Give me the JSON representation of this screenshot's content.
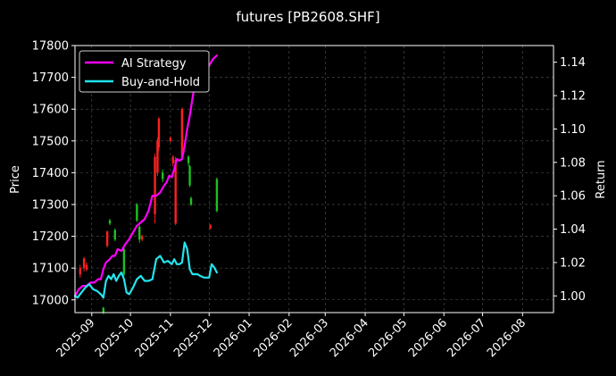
{
  "chart_data": {
    "type": "line",
    "title": "futures [PB2608.SHF]",
    "ylabel_left": "Price",
    "ylabel_right": "Return",
    "xlabel": "",
    "grid": true,
    "legend_position": "top-left",
    "x_ticks": [
      "2025-09",
      "2025-10",
      "2025-11",
      "2025-12",
      "2026-01",
      "2026-02",
      "2026-03",
      "2026-04",
      "2026-05",
      "2026-06",
      "2026-07",
      "2026-08"
    ],
    "xlim": [
      "2025-08-19",
      "2026-08-25"
    ],
    "ylim_left": [
      16960,
      17800
    ],
    "y_ticks_left": [
      17000,
      17100,
      17200,
      17300,
      17400,
      17500,
      17600,
      17700,
      17800
    ],
    "ylim_right": [
      0.99,
      1.15
    ],
    "y_ticks_right": [
      "1.00",
      "1.02",
      "1.04",
      "1.06",
      "1.08",
      "1.10",
      "1.12",
      "1.14"
    ],
    "colors": {
      "up": "#ff2020",
      "down": "#1fbf1f",
      "strategy": "#ff00ff",
      "buyhold": "#22e5ee",
      "grid": "#555555"
    },
    "candles": [
      {
        "x": "2025-08-23",
        "open": 17080,
        "close": 17100,
        "high": 17110,
        "low": 17070
      },
      {
        "x": "2025-08-26",
        "open": 17100,
        "close": 17130,
        "high": 17135,
        "low": 17090
      },
      {
        "x": "2025-08-28",
        "open": 17095,
        "close": 17110,
        "high": 17118,
        "low": 17090
      },
      {
        "x": "2025-09-10",
        "open": 16975,
        "close": 16960,
        "high": 16978,
        "low": 16955
      },
      {
        "x": "2025-09-13",
        "open": 17170,
        "close": 17215,
        "high": 17218,
        "low": 17165
      },
      {
        "x": "2025-09-15",
        "open": 17250,
        "close": 17240,
        "high": 17255,
        "low": 17235
      },
      {
        "x": "2025-09-19",
        "open": 17220,
        "close": 17190,
        "high": 17225,
        "low": 17185
      },
      {
        "x": "2025-09-26",
        "open": 17160,
        "close": 17080,
        "high": 17170,
        "low": 17075
      },
      {
        "x": "2025-10-06",
        "open": 17300,
        "close": 17250,
        "high": 17305,
        "low": 17245
      },
      {
        "x": "2025-10-08",
        "open": 17230,
        "close": 17190,
        "high": 17235,
        "low": 17180
      },
      {
        "x": "2025-10-10",
        "open": 17190,
        "close": 17200,
        "high": 17205,
        "low": 17185
      },
      {
        "x": "2025-10-20",
        "open": 17270,
        "close": 17450,
        "high": 17460,
        "low": 17240
      },
      {
        "x": "2025-10-22",
        "open": 17400,
        "close": 17500,
        "high": 17510,
        "low": 17390
      },
      {
        "x": "2025-10-23",
        "open": 17480,
        "close": 17570,
        "high": 17575,
        "low": 17470
      },
      {
        "x": "2025-10-26",
        "open": 17400,
        "close": 17380,
        "high": 17410,
        "low": 17370
      },
      {
        "x": "2025-11-01",
        "open": 17500,
        "close": 17510,
        "high": 17515,
        "low": 17495
      },
      {
        "x": "2025-11-03",
        "open": 17430,
        "close": 17450,
        "high": 17455,
        "low": 17420
      },
      {
        "x": "2025-11-05",
        "open": 17240,
        "close": 17440,
        "high": 17450,
        "low": 17235
      },
      {
        "x": "2025-11-10",
        "open": 17450,
        "close": 17600,
        "high": 17605,
        "low": 17440
      },
      {
        "x": "2025-11-15",
        "open": 17450,
        "close": 17430,
        "high": 17455,
        "low": 17420
      },
      {
        "x": "2025-11-16",
        "open": 17420,
        "close": 17360,
        "high": 17425,
        "low": 17355
      },
      {
        "x": "2025-11-17",
        "open": 17320,
        "close": 17300,
        "high": 17325,
        "low": 17295
      },
      {
        "x": "2025-12-02",
        "open": 17225,
        "close": 17235,
        "high": 17238,
        "low": 17222
      },
      {
        "x": "2025-12-07",
        "open": 17380,
        "close": 17280,
        "high": 17385,
        "low": 17275
      }
    ],
    "series": [
      {
        "name": "AI Strategy",
        "axis": "right",
        "points": [
          [
            "2025-08-19",
            1.0
          ],
          [
            "2025-08-22",
            1.004
          ],
          [
            "2025-08-25",
            1.006
          ],
          [
            "2025-08-28",
            1.006
          ],
          [
            "2025-08-31",
            1.008
          ],
          [
            "2025-09-03",
            1.008
          ],
          [
            "2025-09-06",
            1.01
          ],
          [
            "2025-09-08",
            1.01
          ],
          [
            "2025-09-10",
            1.016
          ],
          [
            "2025-09-12",
            1.02
          ],
          [
            "2025-09-15",
            1.022
          ],
          [
            "2025-09-17",
            1.024
          ],
          [
            "2025-09-19",
            1.024
          ],
          [
            "2025-09-21",
            1.028
          ],
          [
            "2025-09-24",
            1.027
          ],
          [
            "2025-09-27",
            1.031
          ],
          [
            "2025-09-30",
            1.034
          ],
          [
            "2025-10-03",
            1.038
          ],
          [
            "2025-10-06",
            1.042
          ],
          [
            "2025-10-09",
            1.044
          ],
          [
            "2025-10-12",
            1.046
          ],
          [
            "2025-10-15",
            1.051
          ],
          [
            "2025-10-18",
            1.06
          ],
          [
            "2025-10-21",
            1.06
          ],
          [
            "2025-10-24",
            1.062
          ],
          [
            "2025-10-27",
            1.066
          ],
          [
            "2025-10-29",
            1.068
          ],
          [
            "2025-10-31",
            1.072
          ],
          [
            "2025-11-02",
            1.071
          ],
          [
            "2025-11-04",
            1.076
          ],
          [
            "2025-11-06",
            1.082
          ],
          [
            "2025-11-08",
            1.081
          ],
          [
            "2025-11-10",
            1.082
          ],
          [
            "2025-11-12",
            1.09
          ],
          [
            "2025-11-14",
            1.1
          ],
          [
            "2025-11-16",
            1.108
          ],
          [
            "2025-11-18",
            1.118
          ],
          [
            "2025-11-20",
            1.128
          ],
          [
            "2025-11-23",
            1.128
          ],
          [
            "2025-11-26",
            1.128
          ],
          [
            "2025-11-28",
            1.134
          ],
          [
            "2025-12-01",
            1.138
          ],
          [
            "2025-12-04",
            1.142
          ],
          [
            "2025-12-07",
            1.144
          ]
        ]
      },
      {
        "name": "Buy-and-Hold",
        "axis": "right",
        "points": [
          [
            "2025-08-19",
            1.0
          ],
          [
            "2025-08-21",
            0.999
          ],
          [
            "2025-08-24",
            1.002
          ],
          [
            "2025-08-27",
            1.005
          ],
          [
            "2025-08-30",
            1.007
          ],
          [
            "2025-09-02",
            1.004
          ],
          [
            "2025-09-05",
            1.003
          ],
          [
            "2025-09-08",
            1.001
          ],
          [
            "2025-09-10",
            0.999
          ],
          [
            "2025-09-12",
            1.009
          ],
          [
            "2025-09-14",
            1.012
          ],
          [
            "2025-09-16",
            1.01
          ],
          [
            "2025-09-18",
            1.013
          ],
          [
            "2025-09-20",
            1.009
          ],
          [
            "2025-09-22",
            1.012
          ],
          [
            "2025-09-24",
            1.014
          ],
          [
            "2025-09-26",
            1.01
          ],
          [
            "2025-09-28",
            1.002
          ],
          [
            "2025-09-30",
            1.001
          ],
          [
            "2025-10-03",
            1.005
          ],
          [
            "2025-10-06",
            1.01
          ],
          [
            "2025-10-09",
            1.012
          ],
          [
            "2025-10-12",
            1.009
          ],
          [
            "2025-10-15",
            1.009
          ],
          [
            "2025-10-18",
            1.01
          ],
          [
            "2025-10-21",
            1.022
          ],
          [
            "2025-10-24",
            1.024
          ],
          [
            "2025-10-27",
            1.02
          ],
          [
            "2025-10-30",
            1.021
          ],
          [
            "2025-11-02",
            1.019
          ],
          [
            "2025-11-04",
            1.022
          ],
          [
            "2025-11-06",
            1.019
          ],
          [
            "2025-11-08",
            1.019
          ],
          [
            "2025-11-10",
            1.02
          ],
          [
            "2025-11-12",
            1.032
          ],
          [
            "2025-11-14",
            1.028
          ],
          [
            "2025-11-16",
            1.016
          ],
          [
            "2025-11-18",
            1.013
          ],
          [
            "2025-11-20",
            1.013
          ],
          [
            "2025-11-22",
            1.013
          ],
          [
            "2025-11-24",
            1.012
          ],
          [
            "2025-11-27",
            1.011
          ],
          [
            "2025-12-01",
            1.011
          ],
          [
            "2025-12-03",
            1.019
          ],
          [
            "2025-12-05",
            1.017
          ],
          [
            "2025-12-07",
            1.014
          ]
        ]
      }
    ]
  }
}
